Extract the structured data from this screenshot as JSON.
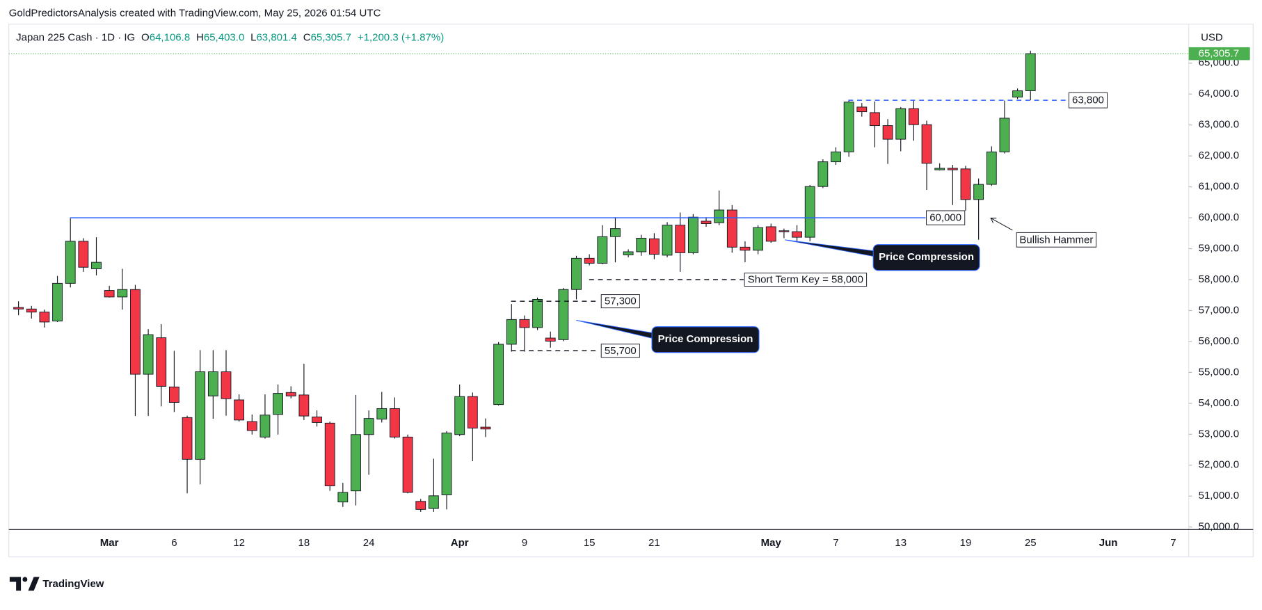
{
  "header": {
    "attribution": "GoldPredictorsAnalysis created with TradingView.com, May 25, 2026 01:54 UTC"
  },
  "logo": "TradingView",
  "chart_data": {
    "type": "candlestick",
    "symbol": "Japan 225 Cash · 1D · IG",
    "legend": [
      {
        "key": "O",
        "value": "64,106.8"
      },
      {
        "key": "H",
        "value": "65,403.0"
      },
      {
        "key": "L",
        "value": "63,801.4"
      },
      {
        "key": "C",
        "value": "65,305.7"
      }
    ],
    "change": "+1,200.3 (+1.87%)",
    "currency": "USD",
    "categories": [
      null,
      null,
      null,
      null,
      null,
      null,
      null,
      "Mar",
      null,
      null,
      null,
      null,
      "6",
      null,
      null,
      null,
      null,
      "12",
      null,
      null,
      null,
      null,
      "18",
      null,
      null,
      null,
      null,
      "24",
      null,
      null,
      null,
      null,
      null,
      null,
      "Apr",
      null,
      null,
      null,
      null,
      "9",
      null,
      null,
      null,
      null,
      "15",
      null,
      null,
      null,
      null,
      "21",
      null,
      null,
      null,
      null,
      null,
      null,
      null,
      null,
      "May",
      null,
      null,
      null,
      null,
      "7",
      null,
      null,
      null,
      null,
      "13",
      null,
      null,
      null,
      null,
      "19",
      null,
      null,
      null,
      null,
      "25",
      null,
      null,
      null,
      null,
      null,
      "Jun",
      null,
      null,
      null,
      null,
      "7"
    ],
    "open": [
      57100,
      57050,
      56950,
      56660,
      57880,
      59240,
      58350,
      57650,
      57440,
      57680,
      54940,
      56120,
      54530,
      53540,
      52190,
      54240,
      55020,
      54110,
      53410,
      52910,
      53640,
      54350,
      54270,
      53560,
      53360,
      50810,
      51170,
      52990,
      53490,
      53830,
      52910,
      50830,
      50600,
      51040,
      52990,
      54220,
      53230,
      53960,
      55910,
      56710,
      56450,
      56110,
      56060,
      57680,
      58690,
      58530,
      59390,
      58800,
      58900,
      59320,
      58790,
      59760,
      58870,
      59890,
      59840,
      60250,
      59050,
      58950,
      59710,
      59580,
      59550,
      59370,
      61010,
      61810,
      62130,
      63580,
      63400,
      62980,
      62540,
      63530,
      63010,
      61550,
      61600,
      61580,
      60590,
      61080,
      62130,
      63900,
      64106.8,
      null,
      null,
      null,
      null,
      null,
      null,
      null,
      null,
      null,
      null,
      null
    ],
    "high": [
      57300,
      57150,
      57030,
      58120,
      59990,
      59340,
      59370,
      57800,
      58350,
      57830,
      56400,
      56560,
      55700,
      53600,
      55720,
      55720,
      55720,
      54290,
      53640,
      54290,
      54610,
      54550,
      55280,
      53770,
      53410,
      51430,
      54270,
      53770,
      54370,
      54190,
      52990,
      50910,
      52210,
      53100,
      54610,
      54350,
      53510,
      55980,
      57210,
      56840,
      57420,
      56320,
      57730,
      58770,
      58820,
      59760,
      60020,
      58980,
      59450,
      59500,
      59860,
      60170,
      60120,
      60020,
      60880,
      60410,
      59240,
      59760,
      59810,
      59650,
      59760,
      61060,
      61890,
      62280,
      63790,
      63710,
      63760,
      63190,
      63580,
      63790,
      63140,
      61760,
      61710,
      61680,
      61270,
      62310,
      63790,
      64180,
      65403,
      null,
      null,
      null,
      null,
      null,
      null,
      null,
      null,
      null,
      null,
      null
    ],
    "low": [
      56850,
      56740,
      56450,
      56630,
      57750,
      58250,
      58140,
      57420,
      57030,
      53590,
      53590,
      53900,
      53720,
      51090,
      51380,
      53500,
      53600,
      53410,
      52990,
      52860,
      52990,
      54160,
      53460,
      53250,
      51170,
      50650,
      50700,
      51690,
      53380,
      52860,
      51090,
      50490,
      50490,
      50570,
      52940,
      52130,
      52910,
      53930,
      55670,
      55670,
      56370,
      55800,
      56010,
      57360,
      58460,
      58500,
      58560,
      58720,
      58770,
      58660,
      58720,
      58250,
      58820,
      59710,
      59760,
      58870,
      58560,
      58820,
      59190,
      59340,
      59240,
      59240,
      60960,
      61710,
      61970,
      63270,
      62280,
      61740,
      62150,
      62490,
      60900,
      61530,
      60410,
      60230,
      59290,
      61030,
      62080,
      63840,
      63801.4,
      null,
      null,
      null,
      null,
      null,
      null,
      null,
      null,
      null,
      null,
      null
    ],
    "close": [
      57050,
      56950,
      56630,
      57880,
      59240,
      58400,
      58560,
      57440,
      57680,
      54940,
      56220,
      54550,
      54030,
      52190,
      55020,
      55020,
      54150,
      53460,
      53120,
      53620,
      54320,
      54240,
      53590,
      53380,
      51330,
      51120,
      52990,
      53510,
      53830,
      52910,
      51120,
      50570,
      51010,
      53040,
      54220,
      53200,
      53170,
      55910,
      56710,
      56450,
      57360,
      56010,
      57680,
      58690,
      58530,
      59390,
      59650,
      58900,
      59340,
      58820,
      59760,
      58870,
      60020,
      59810,
      60250,
      59050,
      58950,
      59680,
      59240,
      59550,
      59370,
      61010,
      61810,
      62130,
      63740,
      63430,
      62980,
      62540,
      63530,
      63010,
      61760,
      61600,
      61550,
      60590,
      61080,
      62130,
      63220,
      64105.4,
      65305.7,
      null,
      null,
      null,
      null,
      null,
      null,
      null,
      null,
      null,
      null,
      null
    ],
    "up_color": "#4caf50",
    "down_color": "#f23645",
    "ylim": [
      49920,
      66260
    ],
    "yticks": [
      {
        "value": 50000,
        "label": "50,000.0"
      },
      {
        "value": 51000,
        "label": "51,000.0"
      },
      {
        "value": 52000,
        "label": "52,000.0"
      },
      {
        "value": 53000,
        "label": "53,000.0"
      },
      {
        "value": 54000,
        "label": "54,000.0"
      },
      {
        "value": 55000,
        "label": "55,000.0"
      },
      {
        "value": 56000,
        "label": "56,000.0"
      },
      {
        "value": 57000,
        "label": "57,000.0"
      },
      {
        "value": 58000,
        "label": "58,000.0"
      },
      {
        "value": 59000,
        "label": "59,000.0"
      },
      {
        "value": 60000,
        "label": "60,000.0"
      },
      {
        "value": 61000,
        "label": "61,000.0"
      },
      {
        "value": 62000,
        "label": "62,000.0"
      },
      {
        "value": 63000,
        "label": "63,000.0"
      },
      {
        "value": 64000,
        "label": "64,000.0"
      },
      {
        "value": 65000,
        "label": "65,000.0"
      }
    ],
    "last_price": {
      "value": 65305.7,
      "label": "65,305.7"
    },
    "levels": [
      {
        "value": 60000,
        "label": "60,000",
        "color": "#2962ff",
        "style": "solid"
      },
      {
        "value": 63800,
        "label": "63,800",
        "color": "#2962ff",
        "style": "dashed"
      },
      {
        "value": 58000,
        "label": "Short Term Key = 58,000",
        "color": "#131722",
        "style": "dashed"
      },
      {
        "value": 57300,
        "label": "57,300",
        "color": "#131722",
        "style": "dashed"
      },
      {
        "value": 55700,
        "label": "55,700",
        "color": "#131722",
        "style": "dashed"
      }
    ],
    "annotations": [
      "Price Compression",
      "Price Compression",
      "Bullish Hammer"
    ]
  }
}
